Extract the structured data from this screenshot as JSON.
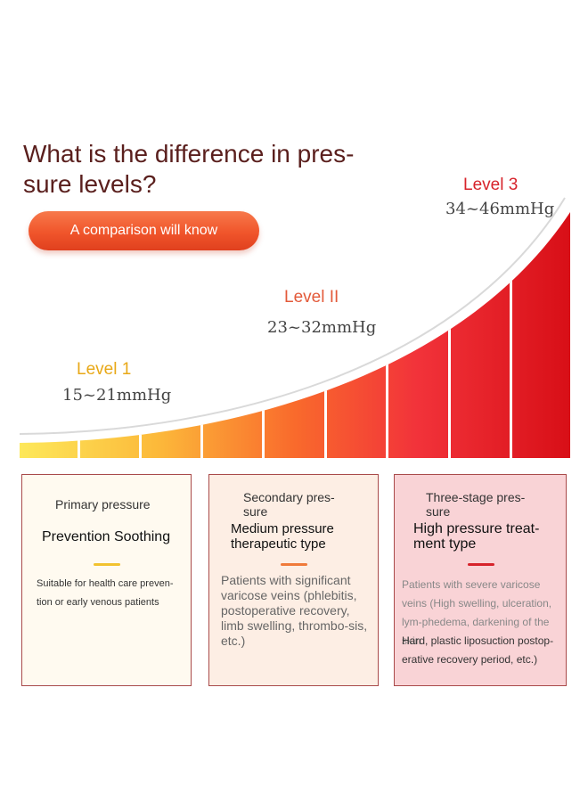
{
  "title": "What is the difference in pres-sure levels?",
  "title_line1": "What is the difference in pres-",
  "title_line2": "sure levels?",
  "cta_button": "A comparison will know",
  "levels": [
    {
      "label": "Level 1",
      "range": "15~21mmHg",
      "color": "#e8a817"
    },
    {
      "label": "Level II",
      "range": "23~32mmHg",
      "color": "#e35a3a"
    },
    {
      "label": "Level 3",
      "range": "34~46mmHg",
      "color": "#d7232b"
    }
  ],
  "cards": [
    {
      "subtitle": "Primary pressure",
      "heading": "Prevention Soothing",
      "description": "Suitable for health care preven-tion or early venous patients",
      "accent": "#f2c230",
      "background": "#fffaf0"
    },
    {
      "subtitle": "Secondary pres-sure",
      "heading": "Medium pressure therapeutic type",
      "description": "Patients with significant varicose veins (phlebitis, postoperative recovery, limb swelling, thrombo-sis, etc.)",
      "accent": "#f07a3a",
      "background": "#fdeee4"
    },
    {
      "subtitle": "Three-stage pres-sure",
      "heading": "High pressure treat-ment type",
      "description_gray": "Patients with severe varicose veins (High swelling, ulceration, lym-phedema, darkening of the skin",
      "description_dark": "Hard, plastic liposuction postop-erative recovery period, etc.)",
      "accent": "#d7232b",
      "background": "#f9d3d6"
    }
  ]
}
